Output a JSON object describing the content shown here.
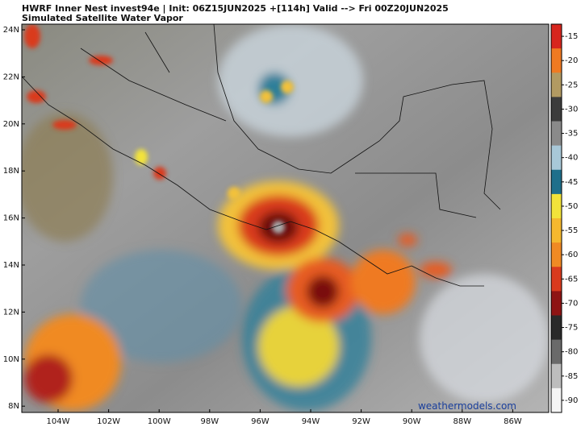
{
  "header": {
    "line1": "HWRF Inner Nest  invest94e | Init: 06Z15JUN2025 +[114h] Valid --> Fri 00Z20JUN2025",
    "line2": "Simulated Satellite Water Vapor"
  },
  "lat_labels": [
    "24N",
    "22N",
    "20N",
    "18N",
    "16N",
    "14N",
    "12N",
    "10N",
    "8N"
  ],
  "lon_labels": [
    "104W",
    "102W",
    "100W",
    "98W",
    "96W",
    "94W",
    "92W",
    "90W",
    "88W",
    "86W"
  ],
  "colorbar": {
    "ticks": [
      -15,
      -20,
      -25,
      -30,
      -35,
      -40,
      -45,
      -50,
      -55,
      -60,
      -65,
      -70,
      -75,
      -80,
      -85,
      -90
    ],
    "colors": [
      "#d7261e",
      "#ef7a22",
      "#b29a62",
      "#3c3c3c",
      "#8a8a8a",
      "#a8c8d8",
      "#1f6f8b",
      "#f2e33a",
      "#f5b82e",
      "#f08a24",
      "#d93a1e",
      "#8e1414",
      "#2a2a2a",
      "#6a6a6a",
      "#bdbdbd",
      "#f4f4f4"
    ]
  },
  "watermark": "weathermodels.com"
}
